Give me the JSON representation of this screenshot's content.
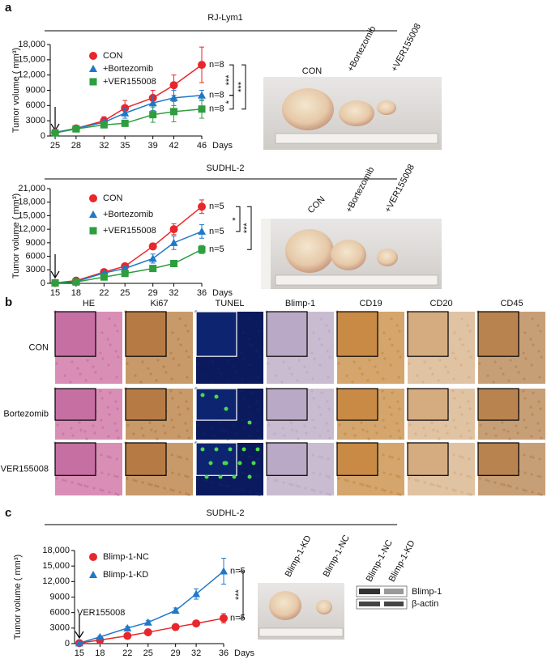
{
  "panel_labels": [
    "a",
    "b",
    "c"
  ],
  "chart_data": [
    {
      "type": "line",
      "title": "RJ-Lym1",
      "y_label": "Tumor volume ( mm³)",
      "x_label": "Days",
      "x": [
        25,
        28,
        32,
        35,
        39,
        42,
        46
      ],
      "xlim": [
        24.3,
        46
      ],
      "xticks": [
        25,
        28,
        32,
        35,
        39,
        42,
        46
      ],
      "ylim": [
        0,
        18000
      ],
      "yticks": [
        0,
        3000,
        6000,
        9000,
        {
          "value": 12000,
          "label": "12,000"
        },
        {
          "value": 15000,
          "label": "15,000"
        },
        {
          "value": 18000,
          "label": "18,000"
        }
      ],
      "series": [
        {
          "name": "CON",
          "color": "#e8262b",
          "marker": "circle",
          "values": [
            700,
            1500,
            3000,
            5500,
            7500,
            10000,
            14000
          ],
          "errors": [
            200,
            300,
            800,
            1500,
            1500,
            2000,
            3500
          ],
          "end_label": "n=8"
        },
        {
          "name": "+Bortezomib",
          "color": "#1f78c8",
          "marker": "triangle",
          "values": [
            700,
            1500,
            2700,
            4500,
            6500,
            7500,
            8000
          ],
          "errors": [
            150,
            300,
            500,
            1000,
            1500,
            1500,
            1000
          ],
          "end_label": "n=8"
        },
        {
          "name": "+VER155008",
          "color": "#2e9e3e",
          "marker": "square",
          "values": [
            600,
            1400,
            2200,
            2500,
            4200,
            4800,
            5300
          ],
          "errors": [
            100,
            200,
            400,
            600,
            1500,
            2000,
            1800
          ],
          "end_label": "n=8"
        }
      ],
      "significance": [
        "***",
        "***",
        "*"
      ]
    },
    {
      "type": "line",
      "title": "SUDHL-2",
      "y_label": "Tumor volume ( mm³)",
      "x_label": "Days",
      "x": [
        15,
        18,
        22,
        25,
        29,
        32,
        36
      ],
      "xlim": [
        14.3,
        36
      ],
      "xticks": [
        15,
        18,
        22,
        25,
        29,
        32,
        36
      ],
      "ylim": [
        0,
        21000
      ],
      "yticks": [
        0,
        3000,
        6000,
        9000,
        {
          "value": 12000,
          "label": "12,000"
        },
        {
          "value": 15000,
          "label": "15,000"
        },
        {
          "value": 18000,
          "label": "18,000"
        },
        {
          "value": 21000,
          "label": "21,000"
        }
      ],
      "series": [
        {
          "name": "CON",
          "color": "#e8262b",
          "marker": "circle",
          "values": [
            100,
            600,
            2500,
            3800,
            8200,
            12000,
            17000
          ],
          "errors": [
            100,
            150,
            300,
            400,
            700,
            1200,
            1500
          ],
          "end_label": "n=5"
        },
        {
          "name": "+Bortezomib",
          "color": "#1f78c8",
          "marker": "triangle",
          "values": [
            100,
            400,
            2300,
            3300,
            5500,
            9000,
            11500
          ],
          "errors": [
            100,
            100,
            300,
            400,
            1000,
            1500,
            1500
          ],
          "end_label": "n=5"
        },
        {
          "name": "+VER155008",
          "color": "#2e9e3e",
          "marker": "square",
          "values": [
            100,
            300,
            1400,
            2200,
            3300,
            4400,
            7500
          ],
          "errors": [
            50,
            100,
            200,
            300,
            400,
            500,
            900
          ],
          "end_label": "n=5"
        }
      ],
      "significance": [
        "*",
        "***"
      ]
    },
    {
      "type": "line",
      "title": "SUDHL-2",
      "y_label": "Tumor volume ( mm³)",
      "x_label": "Days",
      "arrow_label": "VER155008",
      "x": [
        15,
        18,
        22,
        25,
        29,
        32,
        36
      ],
      "xlim": [
        14.3,
        36
      ],
      "xticks": [
        15,
        18,
        22,
        25,
        29,
        32,
        36
      ],
      "ylim": [
        0,
        18000
      ],
      "yticks": [
        0,
        3000,
        6000,
        9000,
        {
          "value": 12000,
          "label": "12,000"
        },
        {
          "value": 15000,
          "label": "15,000"
        },
        {
          "value": 18000,
          "label": "18,000"
        }
      ],
      "series": [
        {
          "name": "Blimp-1-NC",
          "color": "#e8262b",
          "marker": "circle",
          "values": [
            100,
            700,
            1500,
            2200,
            3200,
            3900,
            4900
          ],
          "errors": [
            50,
            100,
            200,
            200,
            300,
            400,
            900
          ],
          "end_label": "n=5"
        },
        {
          "name": "Blimp-1-KD",
          "color": "#1f78c8",
          "marker": "triangle",
          "values": [
            100,
            1300,
            3000,
            4100,
            6400,
            9600,
            14000
          ],
          "errors": [
            50,
            200,
            300,
            400,
            500,
            1000,
            2500
          ],
          "end_label": "n=5"
        }
      ],
      "significance": [
        "***"
      ]
    }
  ],
  "photos": [
    {
      "labels": [
        "CON",
        "+Bortezomib",
        "+VER155008"
      ]
    },
    {
      "labels": [
        "CON",
        "+Bortezomib",
        "+VER155008"
      ]
    },
    {
      "labels": [
        "Blimp-1-KD",
        "Blimp-1-NC"
      ]
    }
  ],
  "ihc": {
    "columns": [
      "HE",
      "Ki67",
      "TUNEL",
      "Blimp-1",
      "CD19",
      "CD20",
      "CD45"
    ],
    "rows": [
      "CON",
      "Bortezomib",
      "VER155008"
    ]
  },
  "western_blot": {
    "lanes": [
      "Blimp-1-NC",
      "Blimp-1-KD"
    ],
    "bands": [
      "Blimp-1",
      "β-actin"
    ]
  }
}
